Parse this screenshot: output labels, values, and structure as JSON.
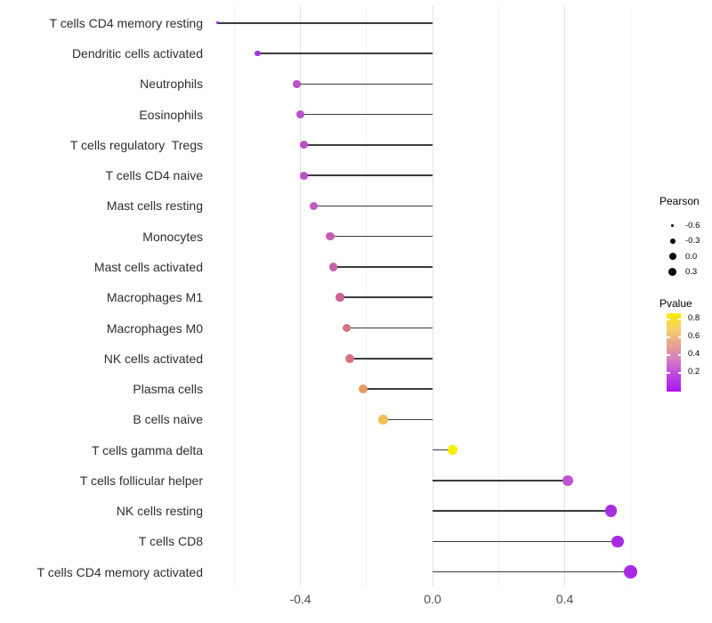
{
  "chart_data": {
    "type": "scatter",
    "subtype": "lollipop-horizontal",
    "title": "",
    "xlabel": "",
    "ylabel": "",
    "categories": [
      "T cells CD4 memory resting",
      "Dendritic cells activated",
      "Neutrophils",
      "Eosinophils",
      "T cells regulatory  Tregs",
      "T cells CD4 naive",
      "Mast cells resting",
      "Monocytes",
      "Mast cells activated",
      "Macrophages M1",
      "Macrophages M0",
      "NK cells activated",
      "Plasma cells",
      "B cells naive",
      "T cells gamma delta",
      "T cells follicular helper",
      "NK cells resting",
      "T cells CD8",
      "T cells CD4 memory activated"
    ],
    "series": [
      {
        "name": "Pearson",
        "values": [
          -0.65,
          -0.53,
          -0.41,
          -0.4,
          -0.39,
          -0.39,
          -0.36,
          -0.31,
          -0.3,
          -0.28,
          -0.26,
          -0.25,
          -0.21,
          -0.15,
          0.06,
          0.41,
          0.54,
          0.56,
          0.6
        ]
      },
      {
        "name": "Pvalue (estimated from color scale)",
        "values": [
          0.05,
          0.1,
          0.22,
          0.23,
          0.23,
          0.23,
          0.27,
          0.3,
          0.32,
          0.36,
          0.43,
          0.44,
          0.55,
          0.66,
          0.86,
          0.24,
          0.1,
          0.08,
          0.07
        ]
      }
    ],
    "point_colors": [
      "#8C2BD9",
      "#9C35D6",
      "#B94FC8",
      "#BB52C8",
      "#BB52C8",
      "#BA51C7",
      "#C35CC0",
      "#C75FB0",
      "#C660A6",
      "#CA6495",
      "#D5737F",
      "#D5747C",
      "#E59B66",
      "#EEC04F",
      "#F7EE00",
      "#BD56CE",
      "#AB2EE2",
      "#A72AE4",
      "#A928E6"
    ],
    "stem_anchor": 0.0,
    "xlim": [
      -0.67,
      0.65
    ],
    "x_ticks_major": [
      -0.4,
      0.0,
      0.4
    ],
    "x_ticks_minor": [
      -0.6,
      -0.2,
      0.2,
      0.6
    ],
    "grid": "vertical-only",
    "legend_position": "right"
  },
  "axis": {
    "x_labels": [
      "-0.4",
      "0.0",
      "0.4"
    ]
  },
  "legend": {
    "pearson": {
      "title": "Pearson",
      "items": [
        {
          "label": "-0.6"
        },
        {
          "label": "-0.3"
        },
        {
          "label": "0.0"
        },
        {
          "label": "0.3"
        }
      ]
    },
    "pvalue": {
      "title": "Pvalue",
      "tick_labels": [
        "0.8",
        "0.6",
        "0.4",
        "0.2"
      ],
      "gradient_stops": [
        "#FBEC00",
        "#F5CE6A",
        "#E8A494",
        "#D37BC2",
        "#BC43E4",
        "#AE14F2"
      ]
    }
  }
}
